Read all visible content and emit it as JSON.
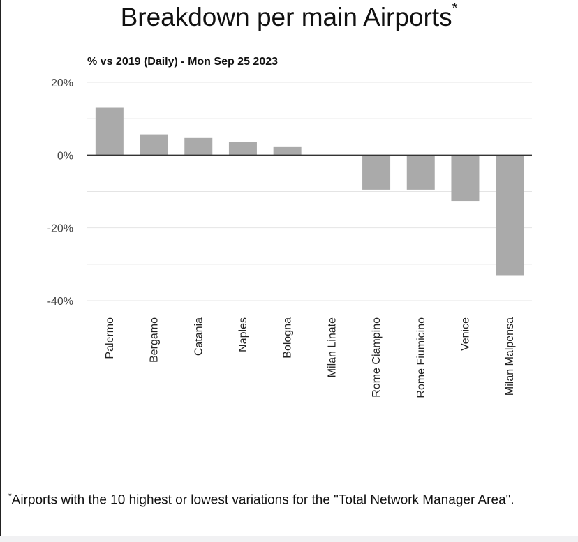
{
  "page": {
    "title": "Breakdown per main Airports",
    "title_mark": "*",
    "footnote_mark": "*",
    "footnote": "Airports with the 10 highest or lowest variations for the \"Total Network Manager Area\"."
  },
  "chart_data": {
    "type": "bar",
    "title": "Breakdown per main Airports",
    "subtitle": "% vs 2019 (Daily) - Mon Sep 25 2023",
    "xlabel": "",
    "ylabel": "",
    "categories": [
      "Palermo",
      "Bergamo",
      "Catania",
      "Naples",
      "Bologna",
      "Milan Linate",
      "Rome Ciampino",
      "Rome Fiumicino",
      "Venice",
      "Milan Malpensa"
    ],
    "values": [
      13.0,
      5.7,
      4.7,
      3.6,
      2.2,
      0.0,
      -9.5,
      -9.5,
      -12.6,
      -33.0
    ],
    "ylim": [
      -40,
      20
    ],
    "yticks": [
      20,
      0,
      -20,
      -40
    ],
    "ytick_labels": [
      "20%",
      "0%",
      "-20%",
      "-40%"
    ],
    "grid": true,
    "legend": "none",
    "colors": {
      "bar": "#aaaaaa",
      "grid": "#e4e4e4",
      "zero_line": "#333333",
      "text": "#444444"
    }
  }
}
